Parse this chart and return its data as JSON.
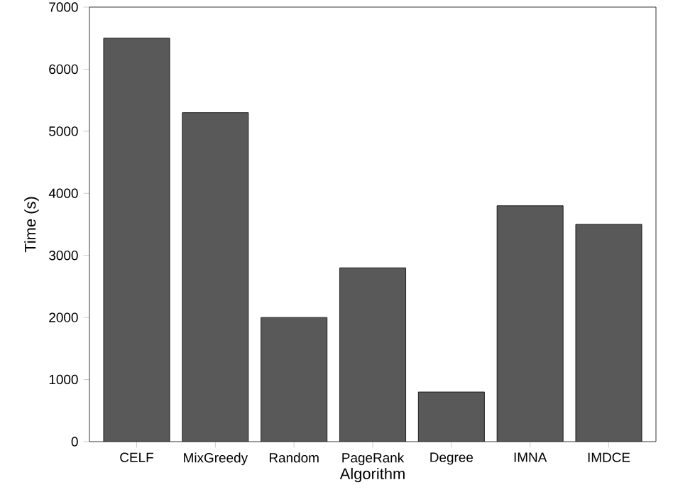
{
  "chart_data": {
    "type": "bar",
    "xlabel": "Algorithm",
    "ylabel": "Time (s)",
    "categories": [
      "CELF",
      "MixGreedy",
      "Random",
      "PageRank",
      "Degree",
      "IMNA",
      "IMDCE"
    ],
    "values": [
      6500,
      5300,
      2000,
      2800,
      800,
      3800,
      3500
    ],
    "color": "#595959",
    "ylim": [
      0,
      7000
    ],
    "yticks": [
      0,
      1000,
      2000,
      3000,
      4000,
      5000,
      6000,
      7000
    ],
    "grid": false
  }
}
